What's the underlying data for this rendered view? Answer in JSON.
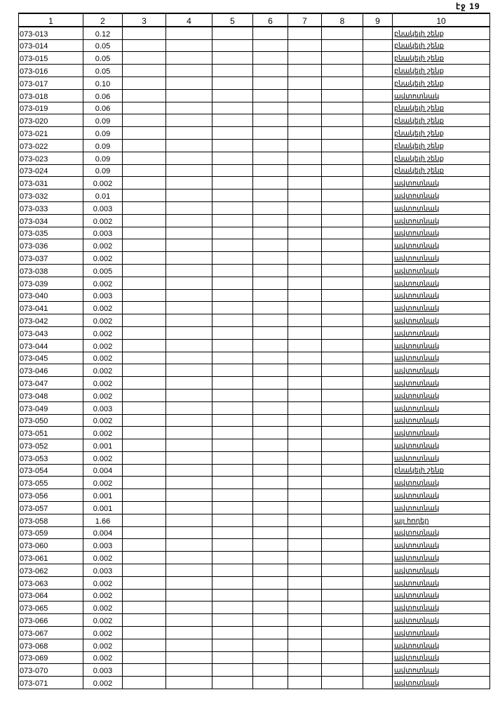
{
  "page_label": "էջ 19",
  "columns": [
    "1",
    "2",
    "3",
    "4",
    "5",
    "6",
    "7",
    "8",
    "9",
    "10"
  ],
  "rows": [
    [
      "073-013",
      "0.12",
      "բնակելի շենք"
    ],
    [
      "073-014",
      "0.05",
      "բնակելի շենք"
    ],
    [
      "073-015",
      "0.05",
      "բնակելի շենք"
    ],
    [
      "073-016",
      "0.05",
      "բնակելի շենք"
    ],
    [
      "073-017",
      "0.10",
      "բնակելի շենք"
    ],
    [
      "073-018",
      "0.06",
      "ավտոտնակ"
    ],
    [
      "073-019",
      "0.06",
      "բնակելի շենք"
    ],
    [
      "073-020",
      "0.09",
      "բնակելի շենք"
    ],
    [
      "073-021",
      "0.09",
      "բնակելի շենք"
    ],
    [
      "073-022",
      "0.09",
      "բնակելի շենք"
    ],
    [
      "073-023",
      "0.09",
      "բնակելի շենք"
    ],
    [
      "073-024",
      "0.09",
      "բնակելի շենք"
    ],
    [
      "073-031",
      "0.002",
      "ավտոտնակ"
    ],
    [
      "073-032",
      "0.01",
      "ավտոտնակ"
    ],
    [
      "073-033",
      "0.003",
      "ավտոտնակ"
    ],
    [
      "073-034",
      "0.002",
      "ավտոտնակ"
    ],
    [
      "073-035",
      "0.003",
      "ավտոտնակ"
    ],
    [
      "073-036",
      "0.002",
      "ավտոտնակ"
    ],
    [
      "073-037",
      "0.002",
      "ավտոտնակ"
    ],
    [
      "073-038",
      "0.005",
      "ավտոտնակ"
    ],
    [
      "073-039",
      "0.002",
      "ավտոտնակ"
    ],
    [
      "073-040",
      "0.003",
      "ավտոտնակ"
    ],
    [
      "073-041",
      "0.002",
      "ավտոտնակ"
    ],
    [
      "073-042",
      "0.002",
      "ավտոտնակ"
    ],
    [
      "073-043",
      "0.002",
      "ավտոտնակ"
    ],
    [
      "073-044",
      "0.002",
      "ավտոտնակ"
    ],
    [
      "073-045",
      "0.002",
      "ավտոտնակ"
    ],
    [
      "073-046",
      "0.002",
      "ավտոտնակ"
    ],
    [
      "073-047",
      "0.002",
      "ավտոտնակ"
    ],
    [
      "073-048",
      "0.002",
      "ավտոտնակ"
    ],
    [
      "073-049",
      "0.003",
      "ավտոտնակ"
    ],
    [
      "073-050",
      "0.002",
      "ավտոտնակ"
    ],
    [
      "073-051",
      "0.002",
      "ավտոտնակ"
    ],
    [
      "073-052",
      "0.001",
      "ավտոտնակ"
    ],
    [
      "073-053",
      "0.002",
      "ավտոտնակ"
    ],
    [
      "073-054",
      "0.004",
      "բնակելի շենք"
    ],
    [
      "073-055",
      "0.002",
      "ավտոտնակ"
    ],
    [
      "073-056",
      "0.001",
      "ավտոտնակ"
    ],
    [
      "073-057",
      "0.001",
      "ավտոտնակ"
    ],
    [
      "073-058",
      "1.66",
      "այլ հողեր"
    ],
    [
      "073-059",
      "0.004",
      "ավտոտնակ"
    ],
    [
      "073-060",
      "0.003",
      "ավտոտնակ"
    ],
    [
      "073-061",
      "0.002",
      "ավտոտնակ"
    ],
    [
      "073-062",
      "0.003",
      "ավտոտնակ"
    ],
    [
      "073-063",
      "0.002",
      "ավտոտնակ"
    ],
    [
      "073-064",
      "0.002",
      "ավտոտնակ"
    ],
    [
      "073-065",
      "0.002",
      "ավտոտնակ"
    ],
    [
      "073-066",
      "0.002",
      "ավտոտնակ"
    ],
    [
      "073-067",
      "0.002",
      "ավտոտնակ"
    ],
    [
      "073-068",
      "0.002",
      "ավտոտնակ"
    ],
    [
      "073-069",
      "0.002",
      "ավտոտնակ"
    ],
    [
      "073-070",
      "0.003",
      "ավտոտնակ"
    ],
    [
      "073-071",
      "0.002",
      "ավտոտնակ"
    ]
  ]
}
